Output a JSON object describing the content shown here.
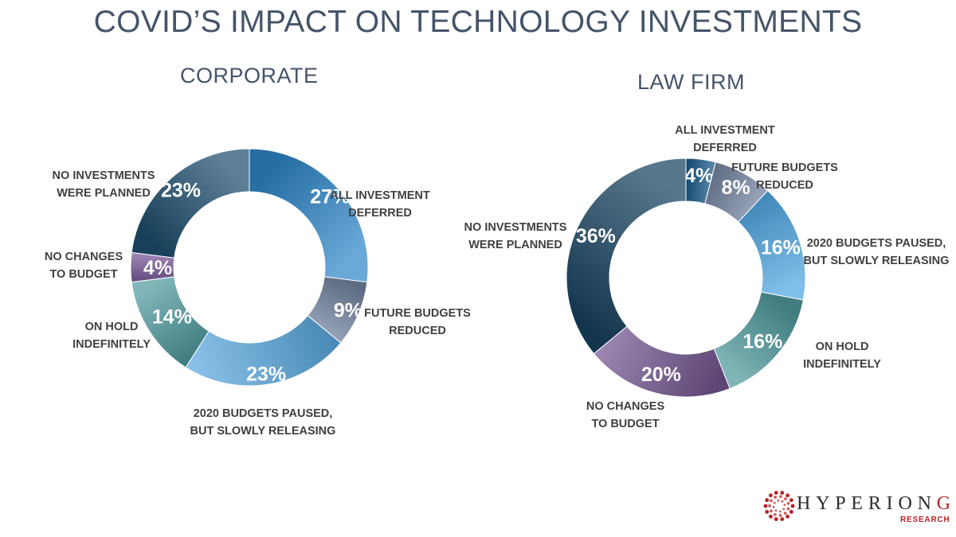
{
  "title": "COVID’S IMPACT ON TECHNOLOGY INVESTMENTS",
  "chart_data": [
    {
      "type": "pie",
      "title": "CORPORATE",
      "slices": [
        {
          "label": [
            "ALL INVESTMENT",
            "DEFERRED"
          ],
          "value": 27,
          "display": "27%",
          "color": "#2E86C8"
        },
        {
          "label": [
            "FUTURE BUDGETS",
            "REDUCED"
          ],
          "value": 9,
          "display": "9%",
          "color": "#71829F"
        },
        {
          "label": [
            "2020 BUDGETS PAUSED,",
            "BUT SLOWLY RELEASING"
          ],
          "value": 23,
          "display": "23%",
          "color": "#5AA8DE"
        },
        {
          "label": [
            "ON HOLD",
            "INDEFINITELY"
          ],
          "value": 14,
          "display": "14%",
          "color": "#4F9A9E"
        },
        {
          "label": [
            "NO CHANGES",
            "TO BUDGET"
          ],
          "value": 4,
          "display": "4%",
          "color": "#7A5A9A"
        },
        {
          "label": [
            "NO INVESTMENTS",
            "WERE PLANNED"
          ],
          "value": 23,
          "display": "23%",
          "color": "#1F4E6E"
        }
      ]
    },
    {
      "type": "pie",
      "title": "LAW FIRM",
      "slices": [
        {
          "label": [
            "ALL INVESTMENT",
            "DEFERRED"
          ],
          "value": 4,
          "display": "4%",
          "color": "#1C5D8C"
        },
        {
          "label": [
            "FUTURE BUDGETS",
            "REDUCED"
          ],
          "value": 8,
          "display": "8%",
          "color": "#7586A3"
        },
        {
          "label": [
            "2020 BUDGETS PAUSED,",
            "BUT SLOWLY RELEASING"
          ],
          "value": 16,
          "display": "16%",
          "color": "#4FA6E0"
        },
        {
          "label": [
            "ON HOLD",
            "INDEFINITELY"
          ],
          "value": 16,
          "display": "16%",
          "color": "#4E999C"
        },
        {
          "label": [
            "NO CHANGES",
            "TO BUDGET"
          ],
          "value": 20,
          "display": "20%",
          "color": "#735690"
        },
        {
          "label": [
            "NO INVESTMENTS",
            "WERE PLANNED"
          ],
          "value": 36,
          "display": "36%",
          "color": "#17425F"
        }
      ]
    }
  ],
  "logo": {
    "word": "HYPERION",
    "accent": "GP",
    "sub": "RESEARCH"
  }
}
